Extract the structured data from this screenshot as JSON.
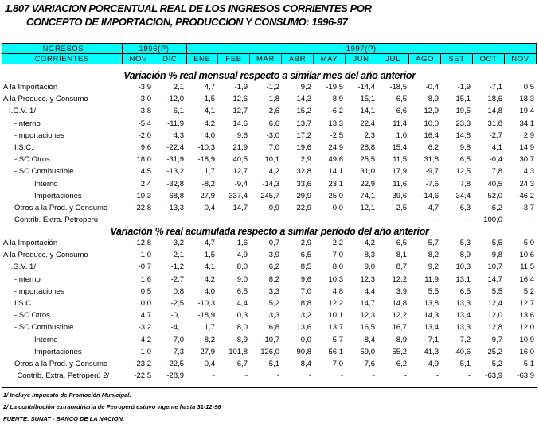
{
  "title": {
    "line1": "1.807  VARIACION PORCENTUAL REAL DE LOS INGRESOS CORRIENTES POR",
    "line2": "CONCEPTO DE IMPORTACION, PRODUCCION Y CONSUMO: 1996-97"
  },
  "header": {
    "label1": "INGRESOS",
    "label2": "CORRIENTES",
    "year1": "1996(P)",
    "year2": "1997(P)",
    "months": [
      "NOV",
      "DIC",
      "ENE",
      "FEB",
      "MAR",
      "ABR",
      "MAY",
      "JUN",
      "JUL",
      "AGO",
      "SET",
      "OCT",
      "NOV"
    ]
  },
  "sections": [
    {
      "title": "Variación % real mensual respecto a similar mes del año anterior",
      "rows": [
        {
          "label": "A la Importación",
          "indent": 0,
          "values": [
            "-3,9",
            "2,1",
            "4,7",
            "-1,9",
            "-1,2",
            "9,2",
            "-19,5",
            "-14,4",
            "-18,5",
            "-0,4",
            "-1,9",
            "-7,1",
            "0,5"
          ]
        },
        {
          "label": "A la Producc. y Consumo",
          "indent": 0,
          "values": [
            "-3,0",
            "-12,0",
            "-1,5",
            "12,6",
            "1,8",
            "14,3",
            "8,9",
            "15,1",
            "6,5",
            "8,9",
            "15,1",
            "18,6",
            "18,3"
          ]
        },
        {
          "label": "I.G.V. 1/",
          "indent": 1,
          "values": [
            "-3,8",
            "-6,1",
            "4,1",
            "12,7",
            "2,6",
            "15,2",
            "6,2",
            "14,1",
            "6,6",
            "12,9",
            "19,5",
            "14,8",
            "19,4"
          ]
        },
        {
          "label": "-Interno",
          "indent": 2,
          "values": [
            "-5,4",
            "-11,9",
            "4,2",
            "14,6",
            "6,6",
            "13,7",
            "13,3",
            "22,4",
            "11,4",
            "10,0",
            "23,3",
            "31,8",
            "34,1"
          ]
        },
        {
          "label": "-Importaciones",
          "indent": 2,
          "values": [
            "-2,0",
            "4,3",
            "4,0",
            "9,6",
            "-3,0",
            "17,2",
            "-2,5",
            "2,3",
            "1,0",
            "16,4",
            "14,8",
            "-2,7",
            "2,9"
          ]
        },
        {
          "label": "I.S.C.",
          "indent": 2,
          "values": [
            "9,6",
            "-22,4",
            "-10,3",
            "21,9",
            "7,0",
            "19,6",
            "24,9",
            "28,8",
            "15,4",
            "6,2",
            "9,8",
            "4,1",
            "14,9"
          ]
        },
        {
          "label": "-ISC Otros",
          "indent": 2,
          "values": [
            "18,0",
            "-31,9",
            "-18,9",
            "40,5",
            "10,1",
            "2,9",
            "49,6",
            "25,5",
            "11,5",
            "31,8",
            "6,5",
            "-0,4",
            "30,7"
          ]
        },
        {
          "label": "-ISC Combustible",
          "indent": 2,
          "values": [
            "4,5",
            "-13,2",
            "1,7",
            "12,7",
            "4,2",
            "32,8",
            "14,1",
            "31,0",
            "17,9",
            "-9,7",
            "12,5",
            "7,8",
            "4,3"
          ]
        },
        {
          "label": "Interno",
          "indent": 3,
          "values": [
            "2,4",
            "-32,8",
            "-8,2",
            "-9,4",
            "-14,3",
            "33,6",
            "23,1",
            "22,9",
            "11,6",
            "-7,6",
            "7,8",
            "40,5",
            "24,3"
          ]
        },
        {
          "label": "Importaciones",
          "indent": 3,
          "values": [
            "10,3",
            "68,8",
            "27,9",
            "337,4",
            "245,7",
            "29,9",
            "-25,0",
            "74,1",
            "39,6",
            "-14,6",
            "34,4",
            "-52,0",
            "-46,2"
          ]
        },
        {
          "label": "Otros a la Prod. y Consumo",
          "indent": 2,
          "values": [
            "-22,8",
            "-13,3",
            "0,4",
            "14,7",
            "0,9",
            "22,9",
            "0,0",
            "12,1",
            "-2,5",
            "-4,7",
            "6,3",
            "6,2",
            "3,7"
          ]
        },
        {
          "label": "Contrib. Extra. Petroperú",
          "indent": 2,
          "values": [
            "-",
            "-",
            "-",
            "-",
            "-",
            "-",
            "-",
            "-",
            "-",
            "-",
            "-",
            "100,0",
            "-"
          ]
        }
      ]
    },
    {
      "title": "Variación % real acumulada respecto a similar período del año anterior",
      "rows": [
        {
          "label": "A la Importación",
          "indent": 0,
          "values": [
            "-12,8",
            "-3,2",
            "4,7",
            "1,6",
            "0,7",
            "2,9",
            "-2,2",
            "-4,2",
            "-6,5",
            "-5,7",
            "-5,3",
            "-5,5",
            "-5,0"
          ]
        },
        {
          "label": "A la Producc. y Consumo",
          "indent": 0,
          "values": [
            "-1,0",
            "-2,1",
            "-1,5",
            "4,9",
            "3,9",
            "6,5",
            "7,0",
            "8,3",
            "8,1",
            "8,2",
            "8,9",
            "9,8",
            "10,6"
          ]
        },
        {
          "label": "I.G.V. 1/",
          "indent": 1,
          "values": [
            "-0,7",
            "-1,2",
            "4,1",
            "8,0",
            "6,2",
            "8,5",
            "8,0",
            "9,0",
            "8,7",
            "9,2",
            "10,3",
            "10,7",
            "11,5"
          ]
        },
        {
          "label": "-Interno",
          "indent": 2,
          "values": [
            "1,6",
            "-2,7",
            "4,2",
            "9,0",
            "8,2",
            "9,6",
            "10,3",
            "12,3",
            "12,2",
            "11,9",
            "13,1",
            "14,7",
            "16,4"
          ]
        },
        {
          "label": "-Importaciones",
          "indent": 2,
          "values": [
            "0,5",
            "0,8",
            "4,0",
            "6,5",
            "3,3",
            "7,0",
            "4,8",
            "4,4",
            "3,9",
            "5,5",
            "6,5",
            "5,5",
            "5,2"
          ]
        },
        {
          "label": "I.S.C.",
          "indent": 2,
          "values": [
            "0,0",
            "-2,5",
            "-10,3",
            "4,4",
            "5,2",
            "8,8",
            "12,2",
            "14,7",
            "14,8",
            "13,8",
            "13,3",
            "12,4",
            "12,7"
          ]
        },
        {
          "label": "-ISC Otros",
          "indent": 2,
          "values": [
            "4,7",
            "-0,1",
            "-18,9",
            "0,3",
            "3,3",
            "3,2",
            "10,1",
            "12,3",
            "12,2",
            "14,3",
            "13,4",
            "12,0",
            "13,6"
          ]
        },
        {
          "label": "-ISC Combustible",
          "indent": 2,
          "values": [
            "-3,2",
            "-4,1",
            "1,7",
            "8,0",
            "6,8",
            "13,6",
            "13,7",
            "16,5",
            "16,7",
            "13,4",
            "13,3",
            "12,8",
            "12,0"
          ]
        },
        {
          "label": "Interno",
          "indent": 3,
          "values": [
            "-4,2",
            "-7,0",
            "-8,2",
            "-8,9",
            "-10,7",
            "0,0",
            "5,7",
            "8,4",
            "8,9",
            "7,1",
            "7,2",
            "9,7",
            "10,9"
          ]
        },
        {
          "label": "Importaciones",
          "indent": 3,
          "values": [
            "1,0",
            "7,3",
            "27,9",
            "101,8",
            "126,0",
            "90,8",
            "56,1",
            "59,0",
            "55,2",
            "41,3",
            "40,6",
            "25,2",
            "16,0"
          ]
        },
        {
          "label": "Otros a la Prod. y Consumo",
          "indent": 2,
          "values": [
            "-23,2",
            "-22,5",
            "0,4",
            "6,7",
            "5,1",
            "8,4",
            "7,0",
            "7,6",
            "6,2",
            "4,9",
            "5,1",
            "5,2",
            "5,1"
          ]
        },
        {
          "label": "Contrib. Extra. Petroperú 2/",
          "indent": 2.5,
          "values": [
            "-22,5",
            "-28,9",
            "-",
            "-",
            "-",
            "-",
            "-",
            "-",
            "-",
            "-",
            "-",
            "-63,9",
            "-63,9"
          ]
        }
      ]
    }
  ],
  "footnotes": [
    "1/ Incluye Impuesto de Promoción Municipal.",
    "2/ La contribución extraordinaria de Petroperú estuvo vigente hasta 31-12-96",
    "FUENTE: SUNAT - BANCO DE LA NACION."
  ],
  "colors": {
    "header_bg": "#00ffff"
  }
}
